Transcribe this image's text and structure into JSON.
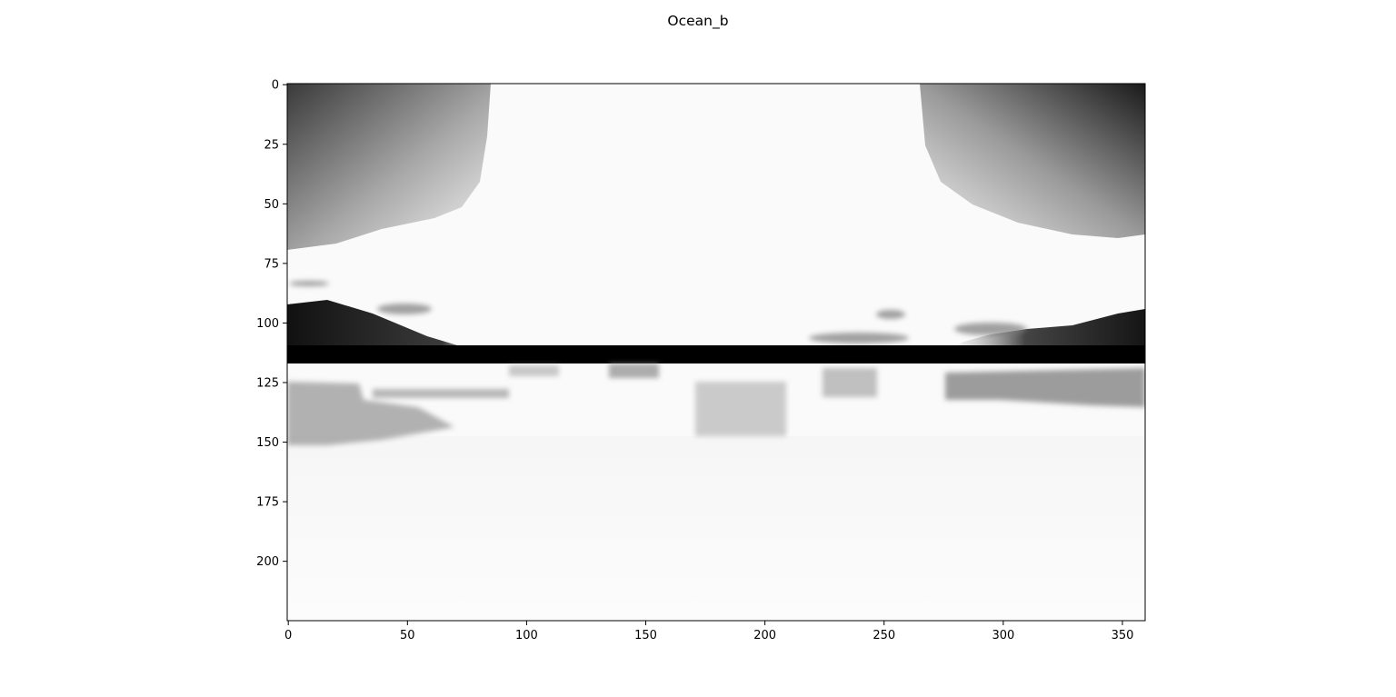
{
  "figure": {
    "title": "Ocean_b"
  },
  "chart_data": {
    "type": "heatmap",
    "title": "Ocean_b",
    "colormap": "gray_r",
    "xlabel": "",
    "ylabel": "",
    "xlim": [
      0,
      360
    ],
    "ylim": [
      225,
      0
    ],
    "grid": false,
    "x_ticks": [
      0,
      50,
      100,
      150,
      200,
      250,
      300,
      350
    ],
    "y_ticks": [
      0,
      25,
      50,
      75,
      100,
      125,
      150,
      175,
      200
    ],
    "image_shape": [
      225,
      360
    ],
    "regions": {
      "dark_bands": [
        {
          "name": "horizon-band",
          "x0": 0,
          "x1": 360,
          "y0": 110,
          "y1": 117,
          "intensity": 1.0
        },
        {
          "name": "left-shore",
          "x0": 0,
          "x1": 75,
          "y0": 90,
          "y1": 117,
          "intensity": 0.9
        },
        {
          "name": "right-shore",
          "x0": 290,
          "x1": 360,
          "y0": 95,
          "y1": 117,
          "intensity": 0.9
        }
      ],
      "corner_gradients": [
        {
          "name": "top-left-sky",
          "x0": 0,
          "x1": 85,
          "y0": 0,
          "y1": 68,
          "peak": 0.65
        },
        {
          "name": "top-right-sky",
          "x0": 265,
          "x1": 360,
          "y0": 0,
          "y1": 63,
          "peak": 0.8
        }
      ],
      "water_patches": [
        {
          "name": "left-water",
          "x0": 0,
          "x1": 90,
          "y0": 122,
          "y1": 150,
          "intensity": 0.35
        },
        {
          "name": "center-reflection",
          "x0": 170,
          "x1": 215,
          "y0": 123,
          "y1": 148,
          "intensity": 0.25
        },
        {
          "name": "right-water",
          "x0": 275,
          "x1": 360,
          "y0": 122,
          "y1": 135,
          "intensity": 0.45
        }
      ]
    }
  }
}
